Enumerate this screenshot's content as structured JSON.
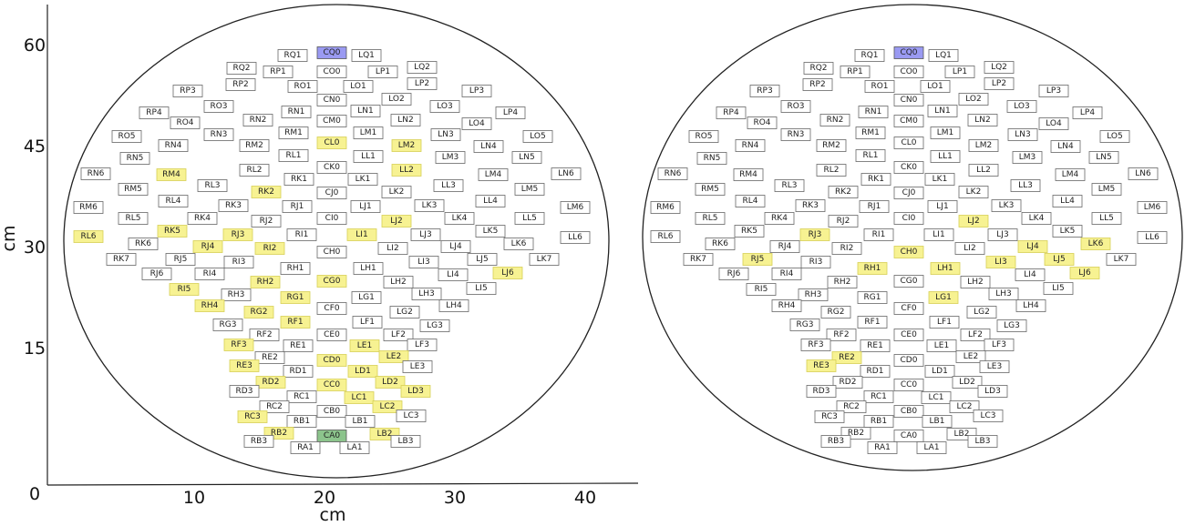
{
  "axes": {
    "x_label": "cm",
    "y_label": "cm",
    "x_ticks": [
      0,
      10,
      20,
      30,
      40
    ],
    "y_ticks": [
      15,
      30,
      45,
      60
    ]
  },
  "palette": {
    "p": "#ffffff",
    "y": "#f7f292",
    "b": "#9a9af2",
    "g": "#8cc48c"
  },
  "electrodes": [
    {
      "label": "RQ1",
      "state": [
        "p",
        "p"
      ]
    },
    {
      "label": "CQ0",
      "state": [
        "b",
        "b"
      ]
    },
    {
      "label": "LQ1",
      "state": [
        "p",
        "p"
      ]
    },
    {
      "label": "RQ2",
      "state": [
        "p",
        "p"
      ]
    },
    {
      "label": "RP1",
      "state": [
        "p",
        "p"
      ]
    },
    {
      "label": "CO0",
      "state": [
        "p",
        "p"
      ]
    },
    {
      "label": "LP1",
      "state": [
        "p",
        "p"
      ]
    },
    {
      "label": "LQ2",
      "state": [
        "p",
        "p"
      ]
    },
    {
      "label": "RP2",
      "state": [
        "p",
        "p"
      ]
    },
    {
      "label": "RO1",
      "state": [
        "p",
        "p"
      ]
    },
    {
      "label": "LO1",
      "state": [
        "p",
        "p"
      ]
    },
    {
      "label": "LP2",
      "state": [
        "p",
        "p"
      ]
    },
    {
      "label": "RP3",
      "state": [
        "p",
        "p"
      ]
    },
    {
      "label": "LP3",
      "state": [
        "p",
        "p"
      ]
    },
    {
      "label": "CN0",
      "state": [
        "p",
        "p"
      ]
    },
    {
      "label": "LO2",
      "state": [
        "p",
        "p"
      ]
    },
    {
      "label": "RO3",
      "state": [
        "p",
        "p"
      ]
    },
    {
      "label": "RN1",
      "state": [
        "p",
        "p"
      ]
    },
    {
      "label": "LN1",
      "state": [
        "p",
        "p"
      ]
    },
    {
      "label": "LO3",
      "state": [
        "p",
        "p"
      ]
    },
    {
      "label": "RP4",
      "state": [
        "p",
        "p"
      ]
    },
    {
      "label": "LP4",
      "state": [
        "p",
        "p"
      ]
    },
    {
      "label": "RO4",
      "state": [
        "p",
        "p"
      ]
    },
    {
      "label": "RN2",
      "state": [
        "p",
        "p"
      ]
    },
    {
      "label": "CM0",
      "state": [
        "p",
        "p"
      ]
    },
    {
      "label": "LN2",
      "state": [
        "p",
        "p"
      ]
    },
    {
      "label": "LO4",
      "state": [
        "p",
        "p"
      ]
    },
    {
      "label": "RO5",
      "state": [
        "p",
        "p"
      ]
    },
    {
      "label": "RN3",
      "state": [
        "p",
        "p"
      ]
    },
    {
      "label": "RM1",
      "state": [
        "p",
        "p"
      ]
    },
    {
      "label": "LM1",
      "state": [
        "p",
        "p"
      ]
    },
    {
      "label": "LN3",
      "state": [
        "p",
        "p"
      ]
    },
    {
      "label": "LO5",
      "state": [
        "p",
        "p"
      ]
    },
    {
      "label": "RN4",
      "state": [
        "p",
        "p"
      ]
    },
    {
      "label": "RM2",
      "state": [
        "p",
        "p"
      ]
    },
    {
      "label": "CL0",
      "state": [
        "y",
        "p"
      ]
    },
    {
      "label": "LM2",
      "state": [
        "y",
        "p"
      ]
    },
    {
      "label": "LN4",
      "state": [
        "p",
        "p"
      ]
    },
    {
      "label": "RN5",
      "state": [
        "p",
        "p"
      ]
    },
    {
      "label": "RL1",
      "state": [
        "p",
        "p"
      ]
    },
    {
      "label": "LL1",
      "state": [
        "p",
        "p"
      ]
    },
    {
      "label": "LM3",
      "state": [
        "p",
        "p"
      ]
    },
    {
      "label": "LN5",
      "state": [
        "p",
        "p"
      ]
    },
    {
      "label": "RL2",
      "state": [
        "p",
        "p"
      ]
    },
    {
      "label": "CK0",
      "state": [
        "p",
        "p"
      ]
    },
    {
      "label": "LL2",
      "state": [
        "y",
        "p"
      ]
    },
    {
      "label": "RN6",
      "state": [
        "p",
        "p"
      ]
    },
    {
      "label": "RM4",
      "state": [
        "y",
        "p"
      ]
    },
    {
      "label": "LM4",
      "state": [
        "p",
        "p"
      ]
    },
    {
      "label": "LN6",
      "state": [
        "p",
        "p"
      ]
    },
    {
      "label": "RK1",
      "state": [
        "p",
        "p"
      ]
    },
    {
      "label": "LK1",
      "state": [
        "p",
        "p"
      ]
    },
    {
      "label": "RL3",
      "state": [
        "p",
        "p"
      ]
    },
    {
      "label": "LL3",
      "state": [
        "p",
        "p"
      ]
    },
    {
      "label": "RM5",
      "state": [
        "p",
        "p"
      ]
    },
    {
      "label": "RK2",
      "state": [
        "y",
        "p"
      ]
    },
    {
      "label": "CJ0",
      "state": [
        "p",
        "p"
      ]
    },
    {
      "label": "LK2",
      "state": [
        "p",
        "p"
      ]
    },
    {
      "label": "LM5",
      "state": [
        "p",
        "p"
      ]
    },
    {
      "label": "RL4",
      "state": [
        "p",
        "p"
      ]
    },
    {
      "label": "RK3",
      "state": [
        "p",
        "p"
      ]
    },
    {
      "label": "RJ1",
      "state": [
        "p",
        "p"
      ]
    },
    {
      "label": "LJ1",
      "state": [
        "p",
        "p"
      ]
    },
    {
      "label": "LK3",
      "state": [
        "p",
        "p"
      ]
    },
    {
      "label": "LL4",
      "state": [
        "p",
        "p"
      ]
    },
    {
      "label": "RM6",
      "state": [
        "p",
        "p"
      ]
    },
    {
      "label": "LM6",
      "state": [
        "p",
        "p"
      ]
    },
    {
      "label": "RL5",
      "state": [
        "p",
        "p"
      ]
    },
    {
      "label": "RK4",
      "state": [
        "p",
        "p"
      ]
    },
    {
      "label": "RJ2",
      "state": [
        "p",
        "p"
      ]
    },
    {
      "label": "CI0",
      "state": [
        "p",
        "p"
      ]
    },
    {
      "label": "LJ2",
      "state": [
        "y",
        "y"
      ]
    },
    {
      "label": "LK4",
      "state": [
        "p",
        "p"
      ]
    },
    {
      "label": "LL5",
      "state": [
        "p",
        "p"
      ]
    },
    {
      "label": "RK5",
      "state": [
        "y",
        "p"
      ]
    },
    {
      "label": "LK5",
      "state": [
        "p",
        "p"
      ]
    },
    {
      "label": "RL6",
      "state": [
        "y",
        "p"
      ]
    },
    {
      "label": "RJ3",
      "state": [
        "y",
        "y"
      ]
    },
    {
      "label": "RI1",
      "state": [
        "p",
        "p"
      ]
    },
    {
      "label": "LI1",
      "state": [
        "y",
        "p"
      ]
    },
    {
      "label": "LJ3",
      "state": [
        "p",
        "p"
      ]
    },
    {
      "label": "LL6",
      "state": [
        "p",
        "p"
      ]
    },
    {
      "label": "RK6",
      "state": [
        "p",
        "p"
      ]
    },
    {
      "label": "RJ4",
      "state": [
        "y",
        "p"
      ]
    },
    {
      "label": "RI2",
      "state": [
        "y",
        "p"
      ]
    },
    {
      "label": "LI2",
      "state": [
        "p",
        "p"
      ]
    },
    {
      "label": "LJ4",
      "state": [
        "p",
        "y"
      ]
    },
    {
      "label": "LK6",
      "state": [
        "p",
        "y"
      ]
    },
    {
      "label": "CH0",
      "state": [
        "p",
        "y"
      ]
    },
    {
      "label": "RK7",
      "state": [
        "p",
        "p"
      ]
    },
    {
      "label": "RJ5",
      "state": [
        "p",
        "y"
      ]
    },
    {
      "label": "RI3",
      "state": [
        "p",
        "p"
      ]
    },
    {
      "label": "LI3",
      "state": [
        "p",
        "y"
      ]
    },
    {
      "label": "LJ5",
      "state": [
        "p",
        "y"
      ]
    },
    {
      "label": "LK7",
      "state": [
        "p",
        "p"
      ]
    },
    {
      "label": "RH1",
      "state": [
        "p",
        "y"
      ]
    },
    {
      "label": "LH1",
      "state": [
        "p",
        "y"
      ]
    },
    {
      "label": "RJ6",
      "state": [
        "p",
        "p"
      ]
    },
    {
      "label": "RI4",
      "state": [
        "p",
        "p"
      ]
    },
    {
      "label": "LI4",
      "state": [
        "p",
        "p"
      ]
    },
    {
      "label": "LJ6",
      "state": [
        "y",
        "y"
      ]
    },
    {
      "label": "RH2",
      "state": [
        "y",
        "p"
      ]
    },
    {
      "label": "CG0",
      "state": [
        "y",
        "p"
      ]
    },
    {
      "label": "LH2",
      "state": [
        "p",
        "p"
      ]
    },
    {
      "label": "RI5",
      "state": [
        "y",
        "p"
      ]
    },
    {
      "label": "LI5",
      "state": [
        "p",
        "p"
      ]
    },
    {
      "label": "RH3",
      "state": [
        "p",
        "p"
      ]
    },
    {
      "label": "RG1",
      "state": [
        "y",
        "p"
      ]
    },
    {
      "label": "LG1",
      "state": [
        "p",
        "y"
      ]
    },
    {
      "label": "LH3",
      "state": [
        "p",
        "p"
      ]
    },
    {
      "label": "RH4",
      "state": [
        "y",
        "p"
      ]
    },
    {
      "label": "LH4",
      "state": [
        "p",
        "p"
      ]
    },
    {
      "label": "RG2",
      "state": [
        "y",
        "p"
      ]
    },
    {
      "label": "CF0",
      "state": [
        "p",
        "p"
      ]
    },
    {
      "label": "LG2",
      "state": [
        "p",
        "p"
      ]
    },
    {
      "label": "RG3",
      "state": [
        "p",
        "p"
      ]
    },
    {
      "label": "RF1",
      "state": [
        "y",
        "p"
      ]
    },
    {
      "label": "LF1",
      "state": [
        "p",
        "p"
      ]
    },
    {
      "label": "LG3",
      "state": [
        "p",
        "p"
      ]
    },
    {
      "label": "RF2",
      "state": [
        "p",
        "p"
      ]
    },
    {
      "label": "CE0",
      "state": [
        "p",
        "p"
      ]
    },
    {
      "label": "LF2",
      "state": [
        "p",
        "p"
      ]
    },
    {
      "label": "RF3",
      "state": [
        "y",
        "p"
      ]
    },
    {
      "label": "RE1",
      "state": [
        "p",
        "p"
      ]
    },
    {
      "label": "LE1",
      "state": [
        "y",
        "p"
      ]
    },
    {
      "label": "LF3",
      "state": [
        "p",
        "p"
      ]
    },
    {
      "label": "RE2",
      "state": [
        "p",
        "y"
      ]
    },
    {
      "label": "CD0",
      "state": [
        "y",
        "p"
      ]
    },
    {
      "label": "LE2",
      "state": [
        "y",
        "p"
      ]
    },
    {
      "label": "RE3",
      "state": [
        "y",
        "y"
      ]
    },
    {
      "label": "RD1",
      "state": [
        "p",
        "p"
      ]
    },
    {
      "label": "LD1",
      "state": [
        "y",
        "p"
      ]
    },
    {
      "label": "LE3",
      "state": [
        "p",
        "p"
      ]
    },
    {
      "label": "RD2",
      "state": [
        "y",
        "p"
      ]
    },
    {
      "label": "CC0",
      "state": [
        "y",
        "p"
      ]
    },
    {
      "label": "LD2",
      "state": [
        "y",
        "p"
      ]
    },
    {
      "label": "RD3",
      "state": [
        "p",
        "p"
      ]
    },
    {
      "label": "RC1",
      "state": [
        "p",
        "p"
      ]
    },
    {
      "label": "LC1",
      "state": [
        "y",
        "p"
      ]
    },
    {
      "label": "LD3",
      "state": [
        "y",
        "p"
      ]
    },
    {
      "label": "RC2",
      "state": [
        "p",
        "p"
      ]
    },
    {
      "label": "CB0",
      "state": [
        "p",
        "p"
      ]
    },
    {
      "label": "LC2",
      "state": [
        "y",
        "p"
      ]
    },
    {
      "label": "RC3",
      "state": [
        "y",
        "p"
      ]
    },
    {
      "label": "RB1",
      "state": [
        "p",
        "p"
      ]
    },
    {
      "label": "LB1",
      "state": [
        "p",
        "p"
      ]
    },
    {
      "label": "LC3",
      "state": [
        "p",
        "p"
      ]
    },
    {
      "label": "RB2",
      "state": [
        "y",
        "p"
      ]
    },
    {
      "label": "CA0",
      "state": [
        "g",
        "p"
      ]
    },
    {
      "label": "LB2",
      "state": [
        "y",
        "p"
      ]
    },
    {
      "label": "RB3",
      "state": [
        "p",
        "p"
      ]
    },
    {
      "label": "LB3",
      "state": [
        "p",
        "p"
      ]
    },
    {
      "label": "RA1",
      "state": [
        "p",
        "p"
      ]
    },
    {
      "label": "LA1",
      "state": [
        "p",
        "p"
      ]
    }
  ]
}
